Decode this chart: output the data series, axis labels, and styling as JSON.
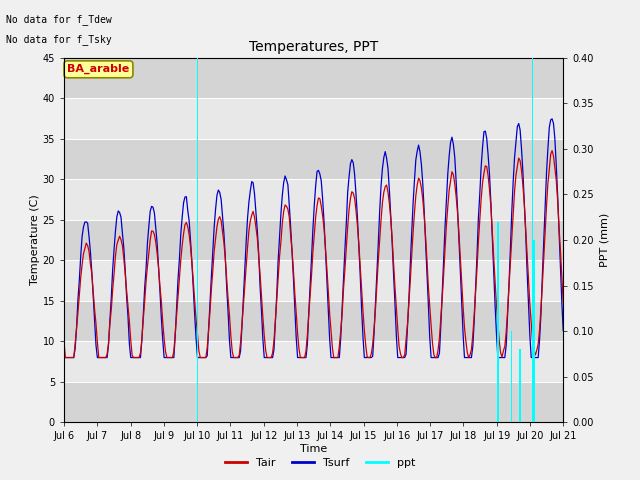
{
  "title": "Temperatures, PPT",
  "xlabel": "Time",
  "ylabel_left": "Temperature (C)",
  "ylabel_right": "PPT (mm)",
  "text_no_data_1": "No data for f_Tdew",
  "text_no_data_2": "No data for f_Tsky",
  "annotation_box": "BA_arable",
  "xlim_start": 6,
  "xlim_end": 21,
  "ylim_left": [
    0,
    45
  ],
  "ylim_right": [
    0,
    0.4
  ],
  "xtick_labels": [
    "Jul 6",
    "Jul 7",
    "Jul 8",
    "Jul 9",
    "Jul 10",
    "Jul 11",
    "Jul 12",
    "Jul 13",
    "Jul 14",
    "Jul 15",
    "Jul 16",
    "Jul 17",
    "Jul 18",
    "Jul 19",
    "Jul 20",
    "Jul 21"
  ],
  "yticks_left": [
    0,
    5,
    10,
    15,
    20,
    25,
    30,
    35,
    40,
    45
  ],
  "yticks_right": [
    0.0,
    0.05,
    0.1,
    0.15,
    0.2,
    0.25,
    0.3,
    0.35,
    0.4
  ],
  "color_tair": "#cc0000",
  "color_tsurf": "#0000cc",
  "color_ppt": "#00ffff",
  "plot_bg_light": "#e8e8e8",
  "plot_bg_dark": "#d4d4d4",
  "grid_color": "#ffffff",
  "annotation_bg": "#ffff99",
  "annotation_border": "#888800",
  "fig_bg": "#f0f0f0"
}
